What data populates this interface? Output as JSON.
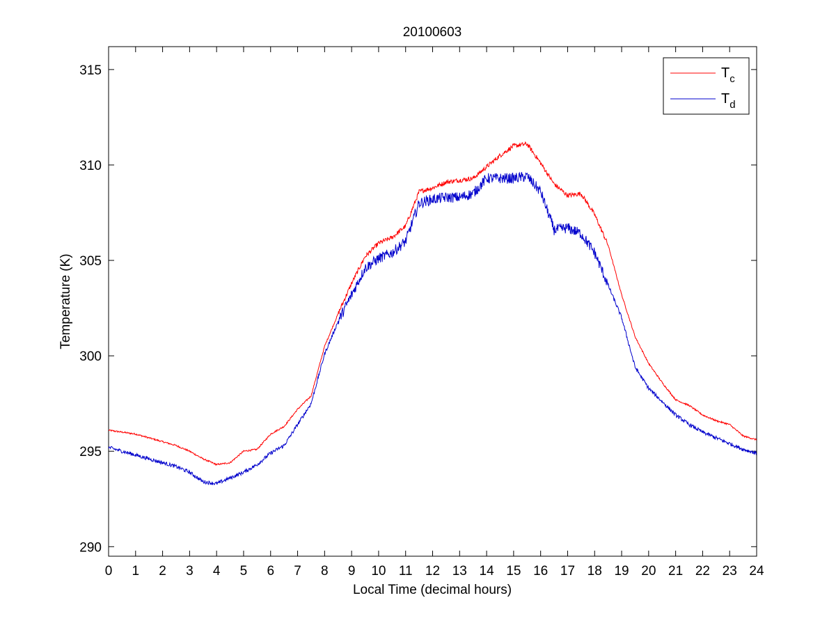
{
  "chart_data": {
    "type": "line",
    "title": "20100603",
    "xlabel": "Local Time (decimal hours)",
    "ylabel": "Temperature (K)",
    "xlim": [
      0,
      24
    ],
    "ylim": [
      289.5,
      316.2
    ],
    "xticks": [
      0,
      1,
      2,
      3,
      4,
      5,
      6,
      7,
      8,
      9,
      10,
      11,
      12,
      13,
      14,
      15,
      16,
      17,
      18,
      19,
      20,
      21,
      22,
      23,
      24
    ],
    "yticks": [
      290,
      295,
      300,
      305,
      310,
      315
    ],
    "grid": false,
    "legend_position": "top-right",
    "colors": {
      "Tc": "#ff0000",
      "Td": "#0000cc"
    },
    "legend": [
      {
        "key": "Tc",
        "base": "T",
        "sub": "c"
      },
      {
        "key": "Td",
        "base": "T",
        "sub": "d"
      }
    ],
    "series": [
      {
        "key": "Tc",
        "x": [
          0,
          0.5,
          1,
          1.5,
          2,
          2.5,
          3,
          3.5,
          4,
          4.5,
          5,
          5.5,
          6,
          6.5,
          7,
          7.5,
          8,
          8.5,
          9,
          9.5,
          10,
          10.5,
          11,
          11.5,
          12,
          12.5,
          13,
          13.5,
          14,
          14.5,
          15,
          15.5,
          16,
          16.5,
          17,
          17.5,
          18,
          18.5,
          19,
          19.5,
          20,
          20.5,
          21,
          21.5,
          22,
          22.5,
          23,
          23.5,
          24
        ],
        "y": [
          296.1,
          296.0,
          295.9,
          295.7,
          295.5,
          295.3,
          295.0,
          294.6,
          294.3,
          294.4,
          295.0,
          295.1,
          295.9,
          296.3,
          297.2,
          297.9,
          300.5,
          302.2,
          303.8,
          305.2,
          305.9,
          306.2,
          306.8,
          308.6,
          308.8,
          309.1,
          309.2,
          309.3,
          309.9,
          310.5,
          311.0,
          311.1,
          310.1,
          309.0,
          308.4,
          308.5,
          307.4,
          305.8,
          303.2,
          301.0,
          299.6,
          298.6,
          297.7,
          297.4,
          296.9,
          296.6,
          296.4,
          295.8,
          295.6
        ],
        "amp": 0.12
      },
      {
        "key": "Td",
        "x": [
          0,
          0.5,
          1,
          1.5,
          2,
          2.5,
          3,
          3.5,
          4,
          4.5,
          5,
          5.5,
          6,
          6.5,
          7,
          7.5,
          8,
          8.5,
          9,
          9.5,
          10,
          10.5,
          11,
          11.5,
          12,
          12.5,
          13,
          13.5,
          14,
          14.5,
          15,
          15.5,
          16,
          16.5,
          17,
          17.5,
          18,
          18.5,
          19,
          19.5,
          20,
          20.5,
          21,
          21.5,
          22,
          22.5,
          23,
          23.5,
          24
        ],
        "y": [
          295.2,
          295.0,
          294.8,
          294.6,
          294.4,
          294.2,
          293.9,
          293.4,
          293.3,
          293.6,
          293.9,
          294.3,
          294.9,
          295.3,
          296.4,
          297.5,
          300.1,
          301.8,
          303.2,
          304.6,
          305.1,
          305.4,
          306.0,
          308.0,
          308.2,
          308.3,
          308.3,
          308.5,
          309.3,
          309.3,
          309.3,
          309.4,
          308.6,
          306.6,
          306.7,
          306.4,
          305.4,
          303.7,
          302.0,
          299.4,
          298.3,
          297.6,
          296.9,
          296.4,
          296.0,
          295.7,
          295.4,
          295.1,
          294.9
        ],
        "amp": 0.28
      }
    ]
  }
}
